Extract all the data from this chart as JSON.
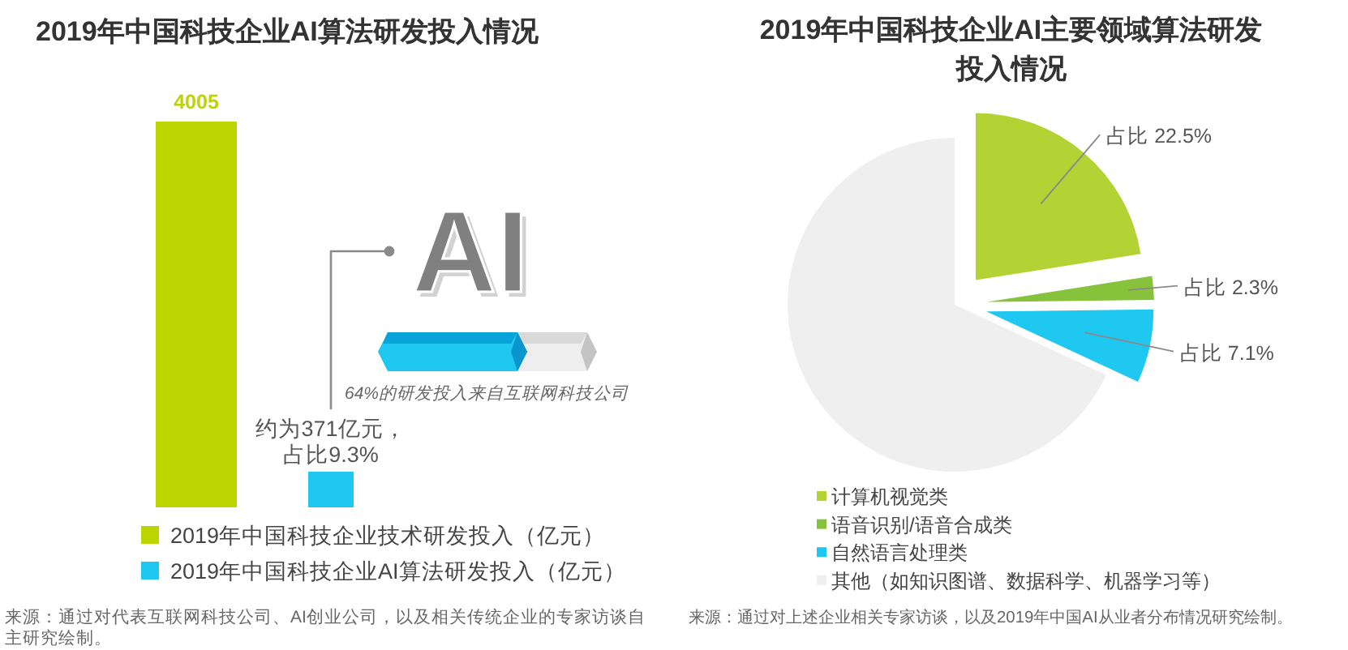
{
  "chart_data": [
    {
      "type": "bar",
      "title": "2019年中国科技企业AI算法研发投入情况",
      "categories": [
        null
      ],
      "series": [
        {
          "name": "2019年中国科技企业技术研发投入（亿元）",
          "color": "#bcd400",
          "values": [
            4005
          ],
          "value_labels": [
            "4005"
          ]
        },
        {
          "name": "2019年中国科技企业AI算法研发投入（亿元）",
          "color": "#1ec8f0",
          "values": [
            371
          ],
          "value_labels": [
            "约为371亿元，占比9.3%"
          ]
        }
      ],
      "legend": "bottom",
      "annotations": [
        "AI",
        "64%的研发投入来自互联网科技公司",
        "来源：通过对代表互联网科技公司、AI创业公司，以及相关传统企业的专家访谈自主研究绘制。"
      ]
    },
    {
      "type": "pie",
      "title": "2019年中国科技企业AI主要领域算法研发投入情况",
      "categories": [
        "计算机视觉类",
        "语音识别/语音合成类",
        "自然语言处理类",
        "其他（如知识图谱、数据科学、机器学习等）"
      ],
      "values": [
        22.5,
        2.3,
        7.1,
        68.1
      ],
      "colors": [
        "#b3d234",
        "#86c23c",
        "#1ec8f0",
        "#efefef"
      ],
      "value_labels": [
        "占比 22.5%",
        "占比 2.3%",
        "占比 7.1%",
        null
      ],
      "legend": "bottom",
      "annotations": [
        "来源：通过对上述企业相关专家访谈，以及2019年中国AI从业者分布情况研究绘制。"
      ]
    }
  ]
}
